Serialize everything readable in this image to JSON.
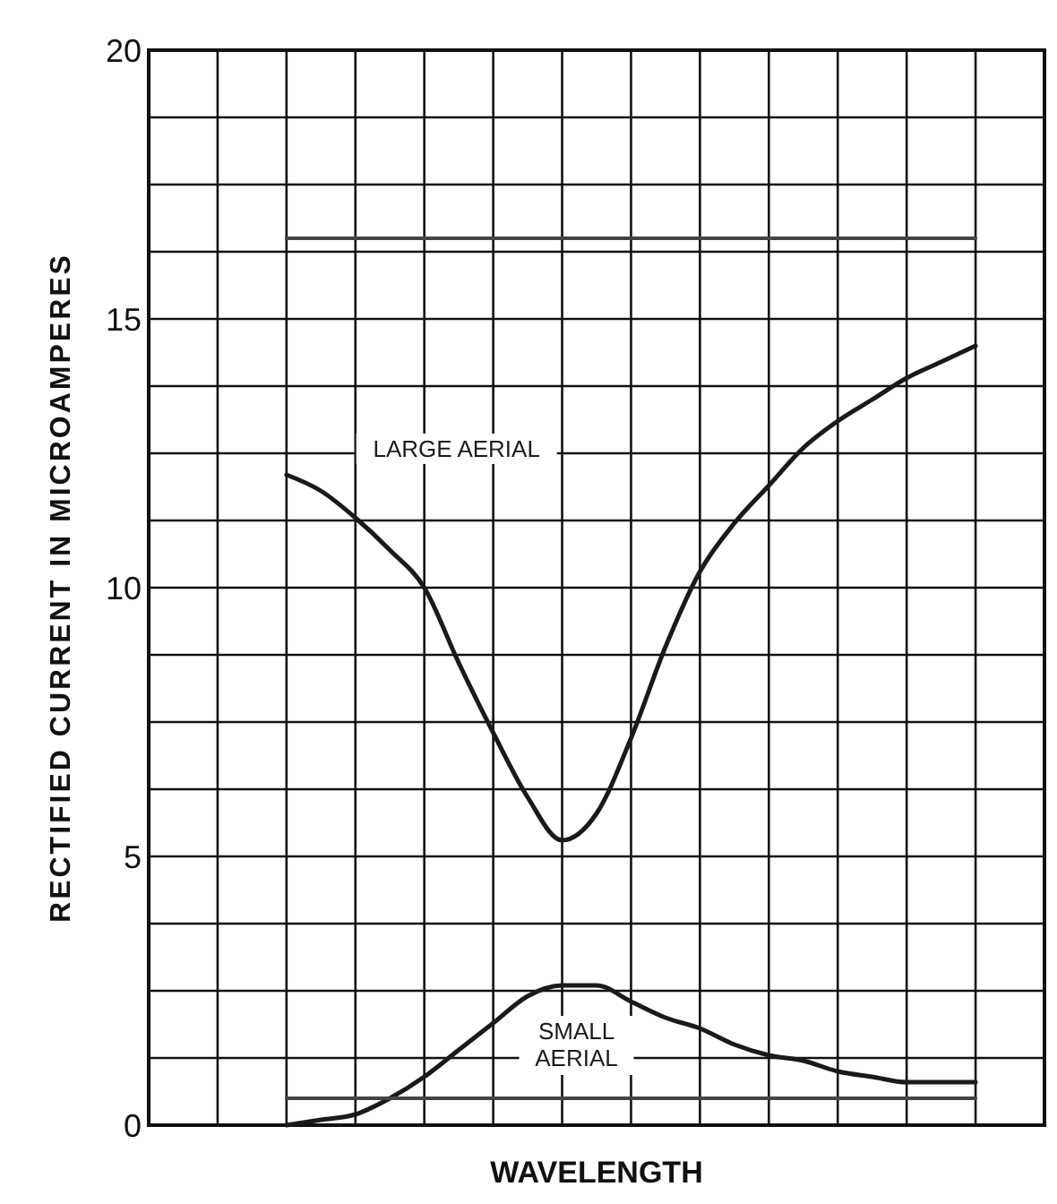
{
  "chart_data": {
    "type": "line",
    "xlabel": "WAVELENGTH",
    "ylabel": "RECTIFIED CURRENT IN MICROAMPERES",
    "categories": [
      null,
      null,
      null,
      null,
      null,
      null,
      null,
      null,
      null,
      null,
      null,
      null,
      null,
      null,
      null,
      null,
      null,
      null,
      null,
      null,
      null,
      null,
      null,
      null,
      null,
      null,
      null
    ],
    "series": [
      {
        "name": "LARGE AERIAL",
        "color": "#1a1a1a",
        "values": [
          null,
          null,
          null,
          null,
          12.1,
          11.8,
          11.3,
          10.7,
          10.0,
          8.6,
          7.3,
          6.1,
          5.3,
          5.8,
          7.2,
          8.9,
          10.3,
          11.2,
          11.9,
          12.6,
          13.1,
          13.5,
          13.9,
          14.2,
          14.5,
          null,
          null
        ]
      },
      {
        "name": "SMALL AERIAL",
        "color": "#1a1a1a",
        "values": [
          null,
          null,
          null,
          null,
          0.0,
          0.1,
          0.2,
          0.5,
          0.9,
          1.4,
          1.9,
          2.4,
          2.6,
          2.6,
          2.3,
          2.0,
          1.8,
          1.5,
          1.3,
          1.2,
          1.0,
          0.9,
          0.8,
          0.8,
          0.8,
          null,
          null
        ]
      },
      {
        "color": "#444444",
        "values": [
          null,
          null,
          null,
          null,
          16.5,
          16.5,
          16.5,
          16.5,
          16.5,
          16.5,
          16.5,
          16.5,
          16.5,
          16.5,
          16.5,
          16.5,
          16.5,
          16.5,
          16.5,
          16.5,
          16.5,
          16.5,
          16.5,
          16.5,
          16.5,
          null,
          null
        ]
      },
      {
        "color": "#444444",
        "values": [
          null,
          null,
          null,
          null,
          0.5,
          0.5,
          0.5,
          0.5,
          0.5,
          0.5,
          0.5,
          0.5,
          0.5,
          0.5,
          0.5,
          0.5,
          0.5,
          0.5,
          0.5,
          0.5,
          0.5,
          0.5,
          0.5,
          0.5,
          0.5,
          null,
          null
        ]
      }
    ],
    "ylim": [
      0,
      20
    ],
    "yticks": [
      0,
      {
        "value": 1.25,
        "label": null
      },
      {
        "value": 2.5,
        "label": null
      },
      {
        "value": 3.75,
        "label": null
      },
      5,
      {
        "value": 6.25,
        "label": null
      },
      {
        "value": 7.5,
        "label": null
      },
      {
        "value": 8.75,
        "label": null
      },
      10,
      {
        "value": 11.25,
        "label": null
      },
      {
        "value": 12.5,
        "label": null
      },
      {
        "value": 13.75,
        "label": null
      },
      15,
      {
        "value": 16.25,
        "label": null
      },
      {
        "value": 17.5,
        "label": null
      },
      {
        "value": 18.75,
        "label": null
      },
      20
    ],
    "grid": true,
    "tick_labels": "y",
    "marker": "none",
    "line_style": "solid"
  }
}
